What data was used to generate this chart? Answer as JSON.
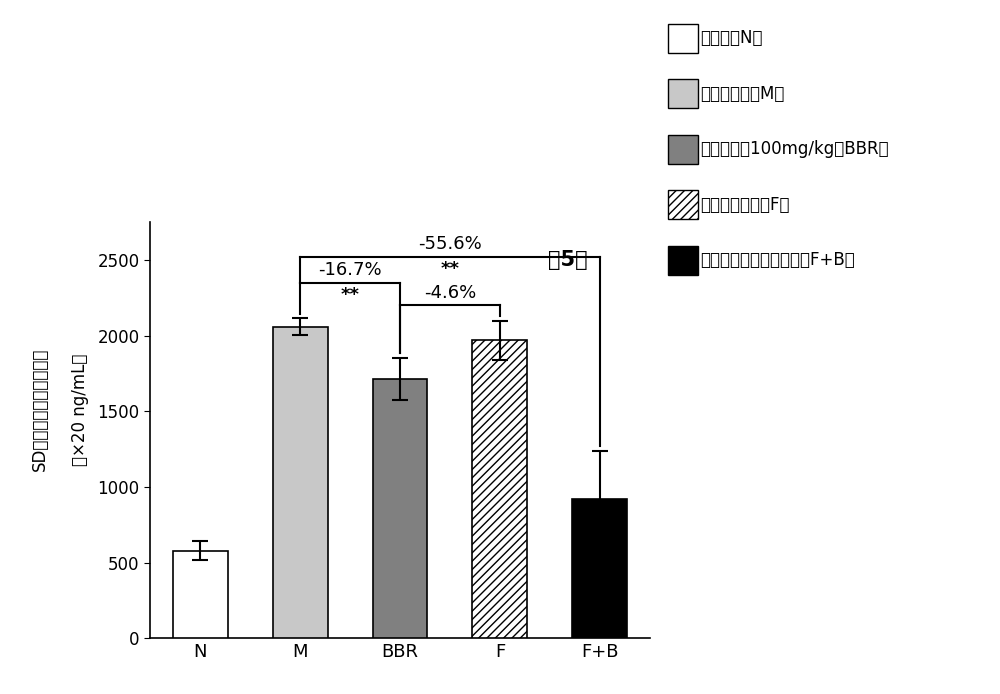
{
  "categories": [
    "N",
    "M",
    "BBR",
    "F",
    "F+B"
  ],
  "values": [
    580,
    2060,
    1715,
    1970,
    920
  ],
  "errors": [
    65,
    55,
    140,
    130,
    320
  ],
  "bar_face_colors": [
    "#ffffff",
    "#c8c8c8",
    "#808080",
    "#ffffff",
    "#000000"
  ],
  "hatch_patterns": [
    "",
    "",
    "",
    "////",
    ""
  ],
  "bar_edgecolor": "#000000",
  "background_color": "#ffffff",
  "ylabel_line1": "SD乳鼠血中苯丙氨酸浓度",
  "ylabel_line2": "（×20 ng/mL）",
  "ylim": [
    0,
    2750
  ],
  "yticks": [
    0,
    500,
    1000,
    1500,
    2000,
    2500
  ],
  "title_day": "第5天",
  "legend_labels": [
    "正常组（N）",
    "模型对照组（M）",
    "口服小檗碱100mg/kg（BBR）",
    "口服粪肠球菌（F）",
    "口服小檗碱和粪肠球菌（F+B）"
  ],
  "legend_face_colors": [
    "#ffffff",
    "#c8c8c8",
    "#808080",
    "#ffffff",
    "#000000"
  ],
  "legend_hatches": [
    "",
    "",
    "",
    "////",
    ""
  ],
  "annotation_bbr_pct": "-16.7%",
  "annotation_f_pct": "-4.6%",
  "annotation_fb_pct": "-55.6%",
  "sig_stars": "**",
  "bar_width": 0.55,
  "figsize": [
    10.0,
    6.94
  ],
  "dpi": 100
}
